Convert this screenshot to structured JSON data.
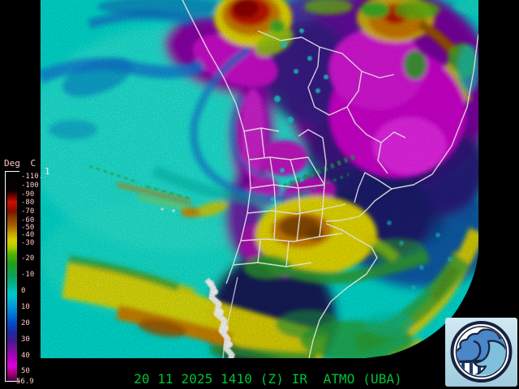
{
  "temperature_scale": {
    "title": "Deg C",
    "labels": [
      "-110.",
      "-100",
      "-90",
      "-80",
      "-70",
      "-60",
      "-50",
      "-40",
      "-30",
      "-20",
      "-10",
      "0",
      "10",
      "20",
      "30",
      "40",
      "50",
      "56.9"
    ],
    "overflow_digit": "1",
    "text_color": "#ffc6c6",
    "colorbar_stops": [
      [
        0,
        "#000000"
      ],
      [
        0.09,
        "#0a0000"
      ],
      [
        0.125,
        "#8e0000"
      ],
      [
        0.145,
        "#c81400"
      ],
      [
        0.166,
        "#b00800"
      ],
      [
        0.19,
        "#7a1400"
      ],
      [
        0.22,
        "#8a3c00"
      ],
      [
        0.26,
        "#a86400"
      ],
      [
        0.295,
        "#c8a000"
      ],
      [
        0.33,
        "#d8d000"
      ],
      [
        0.36,
        "#b0cc00"
      ],
      [
        0.39,
        "#58b400"
      ],
      [
        0.44,
        "#1e9e1e"
      ],
      [
        0.5,
        "#0fa05a"
      ],
      [
        0.545,
        "#00b496"
      ],
      [
        0.585,
        "#00c8c8"
      ],
      [
        0.625,
        "#00aad4"
      ],
      [
        0.67,
        "#0080d8"
      ],
      [
        0.72,
        "#0050c8"
      ],
      [
        0.77,
        "#1e28a0"
      ],
      [
        0.81,
        "#46188c"
      ],
      [
        0.85,
        "#7a10a0"
      ],
      [
        0.89,
        "#b400c0"
      ],
      [
        0.93,
        "#dc00dc"
      ],
      [
        0.965,
        "#a00078"
      ],
      [
        1,
        "#46003c"
      ]
    ]
  },
  "footer": {
    "timestamp_line": "20 11 2025 1410 (Z) IR  ATMO (UBA)",
    "text_color": "#00c232"
  },
  "map": {
    "palette": {
      "ocean_cyan": "#00dcd0",
      "deep_sea_blue": "#0a55a6",
      "cold_front_yellow": "#e8dc00",
      "front_core_orange": "#cc8400",
      "storm_top_red": "#c21800",
      "hot_land_magenta": "#d400d4",
      "cool_cloud_indigo": "#1c1a6e",
      "snow_border_white": "#ffffff"
    }
  },
  "logo": {
    "label": "ATMO UBA emblem",
    "background": "#bcdcea",
    "ring_navy": "#16233f",
    "cloud_blue": "#4a86c8",
    "wave_blue": "#7fc0dc",
    "sun_yellow": "#f2d566"
  }
}
